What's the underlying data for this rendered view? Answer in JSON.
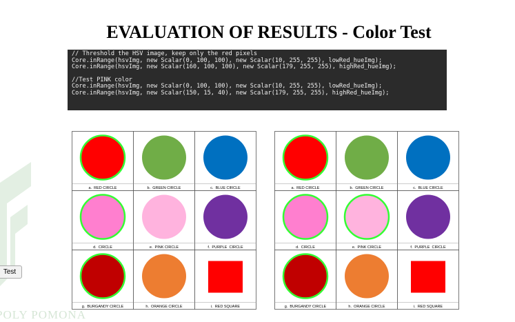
{
  "title": "EVALUATION OF RESULTS - Color Test",
  "code": {
    "blocks": [
      [
        "// Threshold the HSV image, keep only the red pixels",
        "Core.inRange(hsvImg, new Scalar(0, 100, 100), new Scalar(10, 255, 255), lowRed_hueImg);",
        "Core.inRange(hsvImg, new Scalar(160, 100, 100), new Scalar(179, 255, 255), highRed_hueImg);"
      ],
      [
        "//Test PINK color",
        "Core.inRange(hsvImg, new Scalar(0, 100, 100), new Scalar(10, 255, 255), lowRed_hueImg);",
        "Core.inRange(hsvImg, new Scalar(150, 15, 40), new Scalar(179, 255, 255), highRed_hueImg);"
      ]
    ]
  },
  "grids": [
    {
      "cells": [
        {
          "label": "a.  RED CIRCLE",
          "color": "#ff0000",
          "shape": "circle",
          "detected": true
        },
        {
          "label": "b.  GREEN CIRCLE",
          "color": "#70ad47",
          "shape": "circle",
          "detected": false
        },
        {
          "label": "c.  BLUE CIRCLE",
          "color": "#0070c0",
          "shape": "circle",
          "detected": false
        },
        {
          "label": "d.  CIRCLE",
          "color": "#ff7fcf",
          "shape": "circle",
          "detected": true
        },
        {
          "label": "e.  PINK CIRCLE",
          "color": "#ffb3de",
          "shape": "circle",
          "detected": false
        },
        {
          "label": "f.  PURPLE  CIRCLE",
          "color": "#7030a0",
          "shape": "circle",
          "detected": false
        },
        {
          "label": "g.  BURGANDY CIRCLE",
          "color": "#c00000",
          "shape": "circle",
          "detected": true
        },
        {
          "label": "h.  ORANGE CIRCLE",
          "color": "#ed7d31",
          "shape": "circle",
          "detected": false
        },
        {
          "label": "i.  RED SQUARE",
          "color": "#ff0000",
          "shape": "square",
          "detected": false
        }
      ]
    },
    {
      "cells": [
        {
          "label": "a.  RED CIRCLE",
          "color": "#ff0000",
          "shape": "circle",
          "detected": true
        },
        {
          "label": "b.  GREEN CIRCLE",
          "color": "#70ad47",
          "shape": "circle",
          "detected": false
        },
        {
          "label": "c.  BLUE CIRCLE",
          "color": "#0070c0",
          "shape": "circle",
          "detected": false
        },
        {
          "label": "d.  CIRCLE",
          "color": "#ff7fcf",
          "shape": "circle",
          "detected": true
        },
        {
          "label": "e.  PINK CIRCLE",
          "color": "#ffb3de",
          "shape": "circle",
          "detected": true
        },
        {
          "label": "f.  PURPLE  CIRCLE",
          "color": "#7030a0",
          "shape": "circle",
          "detected": false
        },
        {
          "label": "g.  BURGANDY CIRCLE",
          "color": "#c00000",
          "shape": "circle",
          "detected": true
        },
        {
          "label": "h.  ORANGE CIRCLE",
          "color": "#ed7d31",
          "shape": "circle",
          "detected": false
        },
        {
          "label": "i.  RED SQUARE",
          "color": "#ff0000",
          "shape": "square",
          "detected": false
        }
      ]
    }
  ],
  "button": "Test",
  "watermark": "POLY POMONA"
}
